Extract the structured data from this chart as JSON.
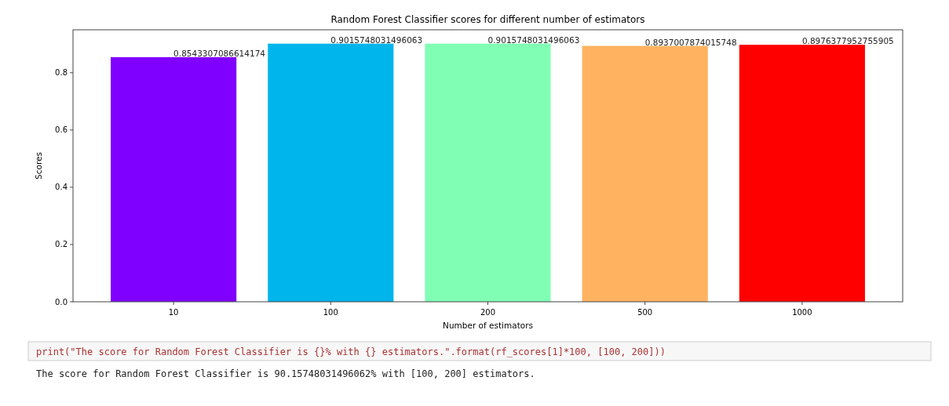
{
  "chart_data": {
    "type": "bar",
    "title": "Random Forest Classifier scores for different number of estimators",
    "xlabel": "Number of estimators",
    "ylabel": "Scores",
    "categories": [
      "10",
      "100",
      "200",
      "500",
      "1000"
    ],
    "values": [
      0.8543307086614174,
      0.9015748031496063,
      0.9015748031496063,
      0.8937007874015748,
      0.8976377952755905
    ],
    "colors": [
      "#8000ff",
      "#00b5eb",
      "#80ffb4",
      "#ffb360",
      "#ff0000"
    ],
    "ylim": [
      0,
      0.95
    ],
    "yticks": [
      {
        "value": 0,
        "label": "0.0"
      },
      {
        "value": 0.2,
        "label": "0.2"
      },
      {
        "value": 0.4,
        "label": "0.4"
      },
      {
        "value": 0.6,
        "label": "0.6"
      },
      {
        "value": 0.8,
        "label": "0.8"
      }
    ],
    "data_labels": true,
    "grid": false,
    "annotations": [
      "print(\"The score for Random Forest Classifier is {}% with {} estimators.\".format(rf_scores[1]*100, [100, 200]))",
      "The score for Random Forest Classifier is 90.15748031496062% with [100, 200] estimators."
    ]
  }
}
